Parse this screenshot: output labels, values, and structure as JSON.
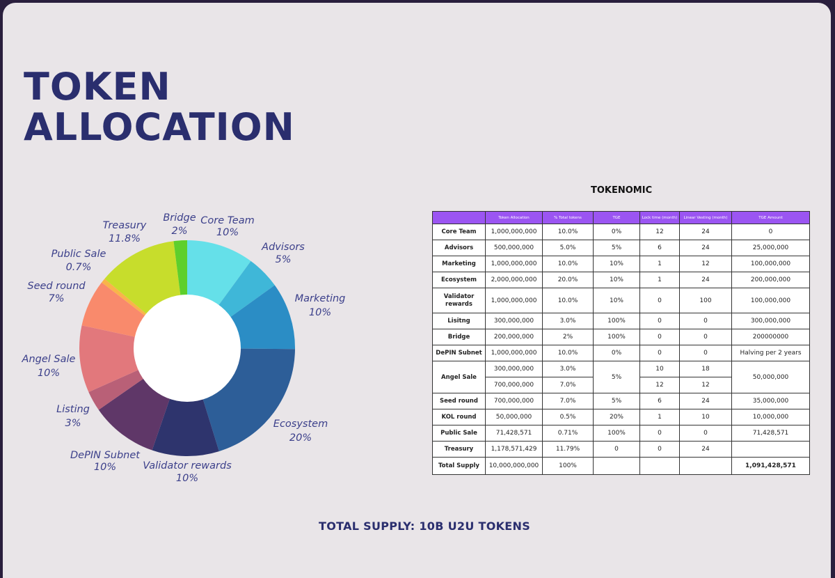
{
  "title": {
    "line1": "TOKEN",
    "line2": "ALLOCATION"
  },
  "chart_data": {
    "type": "pie",
    "subtype": "donut",
    "title": "",
    "start": "12 o'clock, clockwise",
    "slices": [
      {
        "label": "Core Team",
        "value_text": "10%",
        "value": 10,
        "color": "#65e0e9"
      },
      {
        "label": "Advisors",
        "value_text": "5%",
        "value": 5,
        "color": "#3fb7d8"
      },
      {
        "label": "Marketing",
        "value_text": "10%",
        "value": 10,
        "color": "#2b8dc5"
      },
      {
        "label": "Ecosystem",
        "value_text": "20%",
        "value": 20,
        "color": "#2d5e98"
      },
      {
        "label": "Validator rewards",
        "value_text": "10%",
        "value": 10,
        "color": "#2e346d"
      },
      {
        "label": "DePIN Subnet",
        "value_text": "10%",
        "value": 10,
        "color": "#5f3768"
      },
      {
        "label": "Listing",
        "value_text": "3%",
        "value": 3,
        "color": "#b96077"
      },
      {
        "label": "Angel Sale",
        "value_text": "10%",
        "value": 10,
        "color": "#e2787c"
      },
      {
        "label": "Seed round",
        "value_text": "7%",
        "value": 7,
        "color": "#f98a6c"
      },
      {
        "label": "Public Sale",
        "value_text": "0.7%",
        "value": 0.7,
        "color": "#f9b44a"
      },
      {
        "label": "Treasury",
        "value_text": "11.8%",
        "value": 11.8,
        "color": "#c7dd2c"
      },
      {
        "label": "Bridge",
        "value_text": "2%",
        "value": 2,
        "color": "#5ecf2c"
      }
    ]
  },
  "tokenomic": {
    "title": "TOKENOMIC",
    "headers": [
      "",
      "Token Allocation",
      "% Total tokens",
      "TGE",
      "Lock time (month)",
      "Linear Vesting (month)",
      "TGE Amount"
    ],
    "rows": {
      "core_team": {
        "label": "Core Team",
        "alloc": "1,000,000,000",
        "pct": "10.0%",
        "tge": "0%",
        "lock": "12",
        "vest": "24",
        "amount": "0"
      },
      "advisors": {
        "label": "Advisors",
        "alloc": "500,000,000",
        "pct": "5.0%",
        "tge": "5%",
        "lock": "6",
        "vest": "24",
        "amount": "25,000,000"
      },
      "marketing": {
        "label": "Marketing",
        "alloc": "1,000,000,000",
        "pct": "10.0%",
        "tge": "10%",
        "lock": "1",
        "vest": "12",
        "amount": "100,000,000"
      },
      "ecosystem": {
        "label": "Ecosystem",
        "alloc": "2,000,000,000",
        "pct": "20.0%",
        "tge": "10%",
        "lock": "1",
        "vest": "24",
        "amount": "200,000,000"
      },
      "validator": {
        "label": "Validator rewards",
        "alloc": "1,000,000,000",
        "pct": "10.0%",
        "tge": "10%",
        "lock": "0",
        "vest": "100",
        "amount": "100,000,000"
      },
      "listing": {
        "label": "Lisitng",
        "alloc": "300,000,000",
        "pct": "3.0%",
        "tge": "100%",
        "lock": "0",
        "vest": "0",
        "amount": "300,000,000"
      },
      "bridge": {
        "label": "Bridge",
        "alloc": "200,000,000",
        "pct": "2%",
        "tge": "100%",
        "lock": "0",
        "vest": "0",
        "amount": "200000000"
      },
      "depin": {
        "label": "DePIN Subnet",
        "alloc": "1,000,000,000",
        "pct": "10.0%",
        "tge": "0%",
        "lock": "0",
        "vest": "0",
        "amount": "Halving per 2 years"
      },
      "angel": {
        "label": "Angel Sale",
        "alloc_a": "300,000,000",
        "pct_a": "3.0%",
        "lock_a": "10",
        "vest_a": "18",
        "alloc_b": "700,000,000",
        "pct_b": "7.0%",
        "lock_b": "12",
        "vest_b": "12",
        "tge": "5%",
        "amount": "50,000,000"
      },
      "seed": {
        "label": "Seed round",
        "alloc": "700,000,000",
        "pct": "7.0%",
        "tge": "5%",
        "lock": "6",
        "vest": "24",
        "amount": "35,000,000"
      },
      "kol": {
        "label": "KOL round",
        "alloc": "50,000,000",
        "pct": "0.5%",
        "tge": "20%",
        "lock": "1",
        "vest": "10",
        "amount": "10,000,000"
      },
      "public": {
        "label": "Public Sale",
        "alloc": "71,428,571",
        "pct": "0.71%",
        "tge": "100%",
        "lock": "0",
        "vest": "0",
        "amount": "71,428,571"
      },
      "treasury": {
        "label": "Treasury",
        "alloc": "1,178,571,429",
        "pct": "11.79%",
        "tge": "0",
        "lock": "0",
        "vest": "24",
        "amount": ""
      },
      "total": {
        "label": "Total Supply",
        "alloc": "10,000,000,000",
        "pct": "100%",
        "tge": "",
        "lock": "",
        "vest": "",
        "amount": "1,091,428,571"
      }
    }
  },
  "footer": {
    "total_supply": "TOTAL SUPPLY: 10B U2U TOKENS"
  }
}
